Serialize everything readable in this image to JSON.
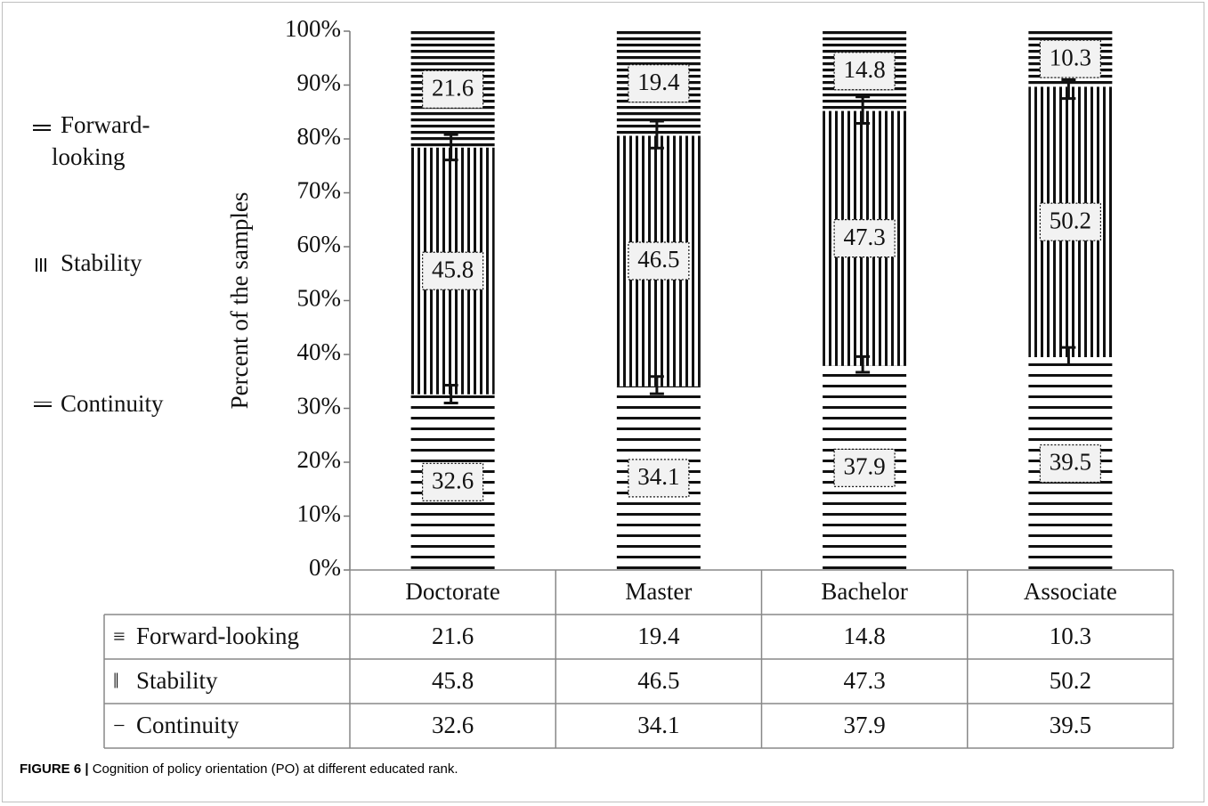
{
  "chart_data": {
    "type": "bar",
    "stacked": true,
    "normalized_percent": true,
    "categories": [
      "Doctorate",
      "Master",
      "Bachelor",
      "Associate"
    ],
    "series": [
      {
        "name": "Continuity",
        "table_label": "Continuity",
        "legend_glyph": "=",
        "table_glyph": "−",
        "pattern": "horizontal-lines",
        "values": [
          32.6,
          34.1,
          37.9,
          39.5
        ],
        "value_labels": [
          "32.6",
          "34.1",
          "37.9",
          "39.5"
        ],
        "error_low": [
          31.0,
          32.7,
          36.7,
          38.1
        ],
        "error_high": [
          34.3,
          35.9,
          39.6,
          41.3
        ]
      },
      {
        "name": "Stability",
        "table_label": "Stability",
        "legend_glyph": "‖",
        "table_glyph": "‖",
        "pattern": "vertical-lines",
        "values": [
          45.8,
          46.5,
          47.3,
          50.2
        ],
        "value_labels": [
          "45.8",
          "46.5",
          "47.3",
          "50.2"
        ],
        "error_low": [
          76.1,
          78.3,
          82.9,
          87.5
        ],
        "error_high": [
          80.8,
          83.3,
          87.8,
          91.0
        ]
      },
      {
        "name_lines": [
          "Forward-",
          "looking"
        ],
        "table_label": "Forward-looking",
        "legend_glyph": "≡",
        "table_glyph": "≡",
        "pattern": "dense-horizontal-lines",
        "values": [
          21.6,
          19.4,
          14.8,
          10.3
        ],
        "value_labels": [
          "21.6",
          "19.4",
          "14.8",
          "10.3"
        ]
      }
    ],
    "ylabel": "Percent of the samples",
    "ylim": [
      0,
      100
    ],
    "yticks": [
      "0%",
      "10%",
      "20%",
      "30%",
      "40%",
      "50%",
      "60%",
      "70%",
      "80%",
      "90%",
      "100%"
    ],
    "legend_position": "left",
    "data_table": true,
    "grid": false
  },
  "caption": {
    "label": "FIGURE 6 |",
    "text": " Cognition of policy orientation (PO) at different educated rank."
  }
}
